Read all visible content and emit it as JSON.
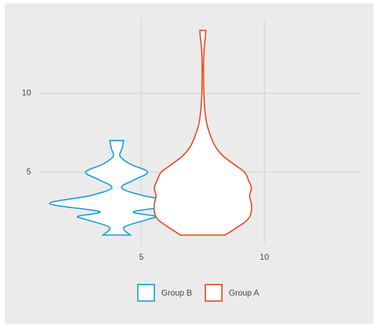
{
  "chart_data": {
    "type": "violin",
    "xlim": [
      0.8,
      13.9
    ],
    "ylim": [
      0.4,
      14.7
    ],
    "xticks": [
      5,
      10
    ],
    "yticks": [
      5,
      10
    ],
    "grid": true,
    "legend": "bottom",
    "series": [
      {
        "name": "Group B",
        "color": "#1a9fd6",
        "position": 4.0,
        "y": [
          1,
          1.5,
          2,
          2.2,
          2.5,
          3,
          3.5,
          4,
          4.5,
          5,
          5.5,
          6,
          6.5,
          7
        ],
        "half_widths": [
          0.56,
          0.3,
          1.26,
          1.57,
          0.7,
          2.72,
          1.1,
          0.2,
          0.7,
          1.26,
          0.56,
          0.14,
          0.22,
          0.28
        ]
      },
      {
        "name": "Group A",
        "color": "#e8491d",
        "position": 7.5,
        "y": [
          1,
          1.5,
          2,
          2.5,
          3,
          3.5,
          4,
          4.5,
          5,
          5.5,
          6,
          6.5,
          7,
          8,
          9,
          10,
          11,
          12,
          13,
          13.5,
          14
        ],
        "half_widths": [
          0.9,
          1.4,
          1.83,
          1.97,
          1.97,
          1.9,
          1.97,
          1.85,
          1.69,
          1.26,
          0.84,
          0.56,
          0.39,
          0.17,
          0.08,
          0.04,
          0.03,
          0.03,
          0.06,
          0.1,
          0.12
        ]
      }
    ]
  }
}
